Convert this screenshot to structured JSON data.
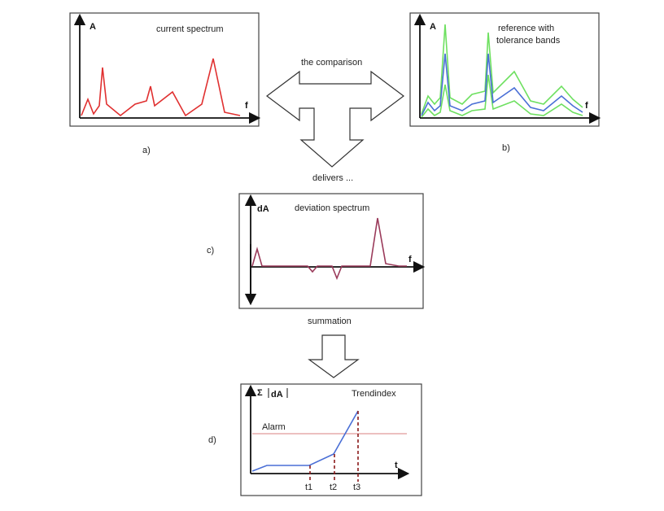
{
  "panels": {
    "a": {
      "tag": "a)",
      "title": "current spectrum",
      "y_label": "A",
      "x_label": "f",
      "series_color": "#e03030"
    },
    "b": {
      "tag": "b)",
      "title_line1": "reference with",
      "title_line2": "tolerance bands",
      "y_label": "A",
      "x_label": "f",
      "reference_color": "#4a6fd6",
      "band_color": "#6ee060"
    },
    "c": {
      "tag": "c)",
      "title": "deviation spectrum",
      "y_label": "dA",
      "x_label": "f",
      "series_color": "#9a3a5a"
    },
    "d": {
      "tag": "d)",
      "title": "Trendindex",
      "y_label_sigma": "Σ",
      "y_label": "dA",
      "x_label": "t",
      "alarm_label": "Alarm",
      "markers": [
        "t1",
        "t2",
        "t3"
      ],
      "trend_color": "#4a6fd6",
      "alarm_color": "#d98080",
      "marker_color": "#8b1a1a"
    }
  },
  "arrows": {
    "comparison_label": "the comparison",
    "delivers_label": "delivers ...",
    "summation_label": "summation"
  }
}
